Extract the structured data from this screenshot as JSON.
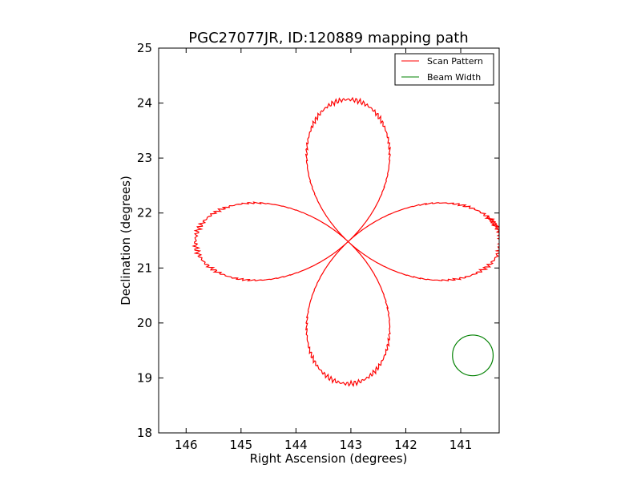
{
  "chart_data": {
    "type": "line",
    "title": "PGC27077JR, ID:120889 mapping path",
    "xlabel": "Right Ascension (degrees)",
    "ylabel": "Declination (degrees)",
    "xlim": [
      146.5,
      140.3
    ],
    "ylim": [
      18,
      25
    ],
    "x_inverted": true,
    "xticks": [
      {
        "value": 146,
        "label": "146"
      },
      {
        "value": 145,
        "label": "145"
      },
      {
        "value": 144,
        "label": "144"
      },
      {
        "value": 143,
        "label": "143"
      },
      {
        "value": 142,
        "label": "142"
      },
      {
        "value": 141,
        "label": "141"
      }
    ],
    "yticks": [
      {
        "value": 18,
        "label": "18"
      },
      {
        "value": 19,
        "label": "19"
      },
      {
        "value": 20,
        "label": "20"
      },
      {
        "value": 21,
        "label": "21"
      },
      {
        "value": 22,
        "label": "22"
      },
      {
        "value": 23,
        "label": "23"
      },
      {
        "value": 24,
        "label": "24"
      },
      {
        "value": 25,
        "label": "25"
      }
    ],
    "grid": false,
    "legend_position": "top-right",
    "series": [
      {
        "name": "Scan Pattern",
        "color": "#ff0000",
        "kind": "rose-curve",
        "center": [
          143.05,
          21.48
        ],
        "amplitude": 2.78,
        "theta_start_deg": 169,
        "theta_end_deg": 540
      },
      {
        "name": "Beam Width",
        "color": "#008000",
        "kind": "circle",
        "center": [
          140.78,
          19.41
        ],
        "radius": 0.37
      }
    ]
  }
}
